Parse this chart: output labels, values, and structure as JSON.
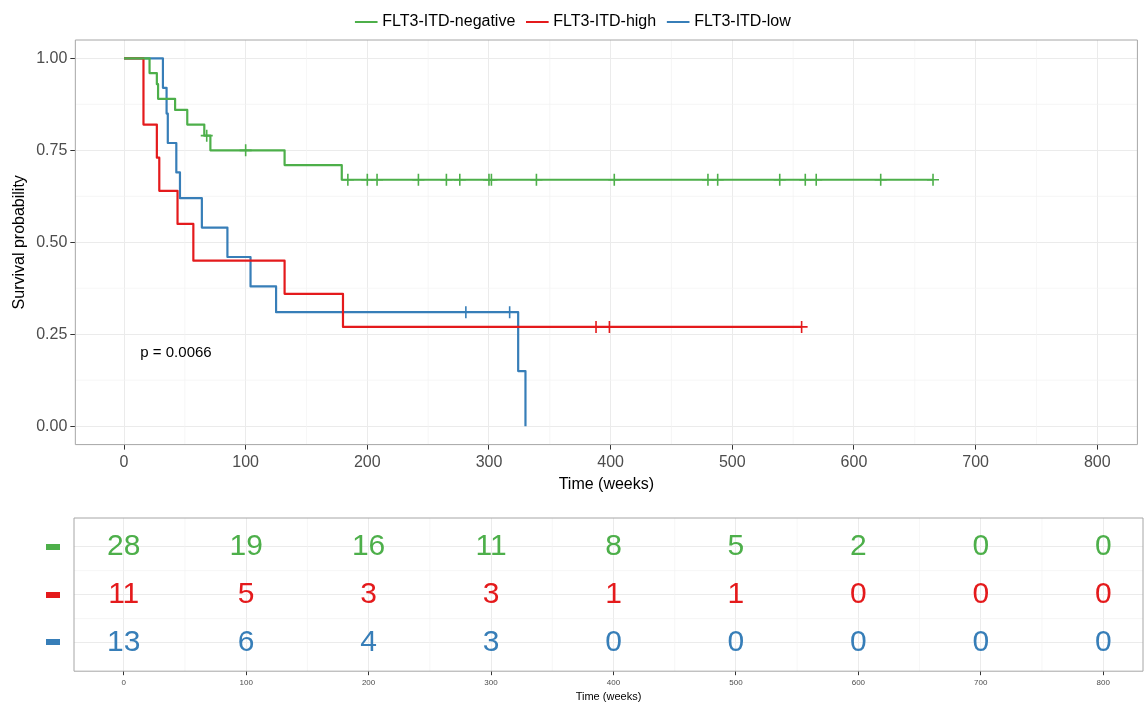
{
  "chart_data": [
    {
      "type": "step",
      "xlabel": "Time (weeks)",
      "ylabel": "Survival probability",
      "xlim": [
        -40,
        833
      ],
      "xticks": [
        0,
        100,
        200,
        300,
        400,
        500,
        600,
        700,
        800
      ],
      "ylim": [
        -0.05,
        1.05
      ],
      "yticks": [
        {
          "value": 0,
          "label": "0.00"
        },
        {
          "value": 0.25,
          "label": "0.25"
        },
        {
          "value": 0.5,
          "label": "0.50"
        },
        {
          "value": 0.75,
          "label": "0.75"
        },
        {
          "value": 1,
          "label": "1.00"
        }
      ],
      "grid": true,
      "legend": "top",
      "line_style": "solid",
      "annotations": [
        "p = 0.0066"
      ],
      "series": [
        {
          "name": "FLT3-ITD-negative",
          "color": "#4daf4a",
          "x": [
            0,
            21,
            27,
            28,
            42,
            52,
            66,
            71,
            132,
            179,
            665
          ],
          "values": [
            1,
            0.96,
            0.93,
            0.89,
            0.86,
            0.82,
            0.79,
            0.75,
            0.71,
            0.67,
            0.67
          ]
        },
        {
          "name": "FLT3-ITD-high",
          "color": "#e41a1c",
          "x": [
            0,
            16,
            16,
            27,
            29,
            44,
            57,
            132,
            180,
            557
          ],
          "values": [
            1,
            0.91,
            0.82,
            0.73,
            0.64,
            0.55,
            0.45,
            0.36,
            0.27,
            0.27
          ]
        },
        {
          "name": "FLT3-ITD-low",
          "color": "#377eb8",
          "x": [
            0,
            32,
            35,
            36,
            43,
            46,
            64,
            85,
            104,
            125,
            324,
            330
          ],
          "values": [
            1,
            0.92,
            0.85,
            0.77,
            0.69,
            0.62,
            0.54,
            0.46,
            0.38,
            0.31,
            0.15,
            0
          ]
        },
        {
          "type": "scatter",
          "marker": "cross",
          "color": "#4daf4a",
          "x": [
            68,
            100,
            184,
            200,
            208,
            242,
            265,
            276,
            300,
            302,
            339,
            403,
            480,
            488,
            539,
            560,
            569,
            622,
            665
          ],
          "values": [
            0.79,
            0.75,
            0.67,
            0.67,
            0.67,
            0.67,
            0.67,
            0.67,
            0.67,
            0.67,
            0.67,
            0.67,
            0.67,
            0.67,
            0.67,
            0.67,
            0.67,
            0.67,
            0.67
          ]
        },
        {
          "type": "scatter",
          "marker": "cross",
          "color": "#e41a1c",
          "x": [
            388,
            399,
            557
          ],
          "values": [
            0.27,
            0.27,
            0.27
          ]
        },
        {
          "type": "scatter",
          "marker": "cross",
          "color": "#377eb8",
          "x": [
            281,
            317
          ],
          "values": [
            0.31,
            0.31
          ]
        }
      ]
    },
    {
      "type": "heatmap",
      "xlabel": "Time (weeks)",
      "categories": [
        "0",
        "100",
        "200",
        "300",
        "400",
        "500",
        "600",
        "700",
        "800"
      ],
      "y_categories": [
        null,
        null,
        null
      ],
      "grid": true,
      "data_labels": true,
      "colors": [
        "#4daf4a",
        "#e41a1c",
        "#377eb8"
      ],
      "cells": [
        [
          28,
          19,
          16,
          11,
          8,
          5,
          2,
          0,
          0
        ],
        [
          11,
          5,
          3,
          3,
          1,
          1,
          0,
          0,
          0
        ],
        [
          13,
          6,
          4,
          3,
          0,
          0,
          0,
          0,
          0
        ]
      ]
    }
  ]
}
